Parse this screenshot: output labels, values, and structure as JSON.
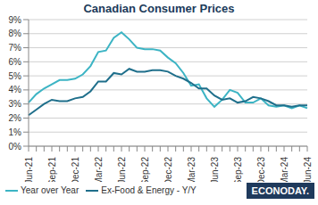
{
  "chart_data": {
    "type": "line",
    "title": "Canadian Consumer Prices",
    "categories": [
      "Jun-21",
      null,
      null,
      "Sep-21",
      null,
      null,
      "Dec-21",
      null,
      null,
      "Mar-22",
      null,
      null,
      "Jun-22",
      null,
      null,
      "Sep-22",
      null,
      null,
      "Dec-22",
      null,
      null,
      "Mar-23",
      null,
      null,
      "Jun-23",
      null,
      null,
      "Sep-23",
      null,
      null,
      "Dec-23",
      null,
      null,
      "Mar-24",
      null,
      null,
      "Jun-24"
    ],
    "series": [
      {
        "name": "Year over Year",
        "color": "#3cb4c4",
        "values": [
          3.1,
          3.7,
          4.1,
          4.4,
          4.7,
          4.7,
          4.8,
          5.1,
          5.7,
          6.7,
          6.8,
          7.7,
          8.1,
          7.6,
          7.0,
          6.9,
          6.9,
          6.8,
          6.3,
          5.9,
          5.2,
          4.3,
          4.4,
          3.4,
          2.8,
          3.3,
          4.0,
          3.8,
          3.1,
          3.1,
          3.4,
          2.9,
          2.8,
          2.9,
          2.7,
          2.9,
          2.7
        ]
      },
      {
        "name": "Ex-Food & Energy - Y/Y",
        "color": "#1f6f8b",
        "values": [
          2.2,
          2.6,
          3.0,
          3.3,
          3.2,
          3.2,
          3.4,
          3.5,
          3.9,
          4.6,
          4.6,
          5.2,
          5.1,
          5.5,
          5.3,
          5.3,
          5.4,
          5.4,
          5.3,
          5.0,
          4.8,
          4.5,
          4.1,
          4.1,
          3.6,
          3.3,
          3.4,
          3.1,
          3.2,
          3.5,
          3.4,
          3.2,
          2.9,
          2.9,
          2.8,
          2.9,
          2.9
        ]
      }
    ],
    "ylim": [
      0,
      9
    ],
    "yticks": [
      {
        "value": 0,
        "label": "0%"
      },
      {
        "value": 1,
        "label": "1%"
      },
      {
        "value": 2,
        "label": "2%"
      },
      {
        "value": 3,
        "label": "3%"
      },
      {
        "value": 4,
        "label": "4%"
      },
      {
        "value": 5,
        "label": "5%"
      },
      {
        "value": 6,
        "label": "6%"
      },
      {
        "value": 7,
        "label": "7%"
      },
      {
        "value": 8,
        "label": "8%"
      },
      {
        "value": 9,
        "label": "9%"
      }
    ],
    "grid": true,
    "legend": "bottom left",
    "annotations": [
      "ECONODAY."
    ]
  }
}
